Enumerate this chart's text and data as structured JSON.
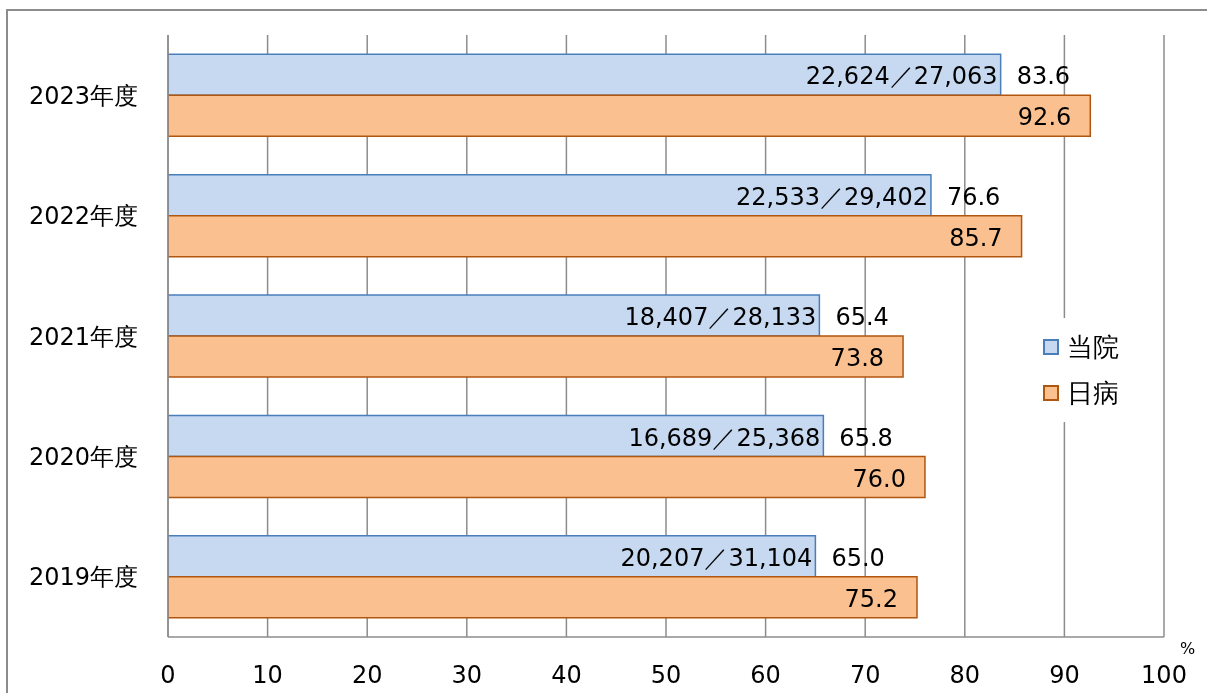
{
  "chart_data": {
    "type": "bar",
    "orientation": "horizontal",
    "categories": [
      "2023年度",
      "2022年度",
      "2021年度",
      "2020年度",
      "2019年度"
    ],
    "series": [
      {
        "name": "当院",
        "color": "#c6d9f1",
        "values": [
          83.6,
          76.6,
          65.4,
          65.8,
          65.0
        ],
        "value_labels": [
          "83.6",
          "76.6",
          "65.4",
          "65.8",
          "65.0"
        ]
      },
      {
        "name": "日病",
        "color": "#fac090",
        "values": [
          92.6,
          85.7,
          73.8,
          76.0,
          75.2
        ],
        "value_labels": [
          "92.6",
          "85.7",
          "73.8",
          "76.0",
          "75.2"
        ]
      }
    ],
    "xlabel": "%",
    "xlim": [
      0,
      100
    ],
    "xticks": [
      0,
      10,
      20,
      30,
      40,
      50,
      60,
      70,
      80,
      90,
      100
    ],
    "grid": "x",
    "legend": "right",
    "annotations": [
      {
        "text": "22,624／27,063",
        "x": 83.6,
        "y": "2023年度"
      },
      {
        "text": "22,533／29,402",
        "x": 76.6,
        "y": "2022年度"
      },
      {
        "text": "18,407／28,133",
        "x": 65.4,
        "y": "2021年度"
      },
      {
        "text": "16,689／25,368",
        "x": 65.8,
        "y": "2020年度"
      },
      {
        "text": "20,207／31,104",
        "x": 65.0,
        "y": "2019年度"
      }
    ]
  }
}
